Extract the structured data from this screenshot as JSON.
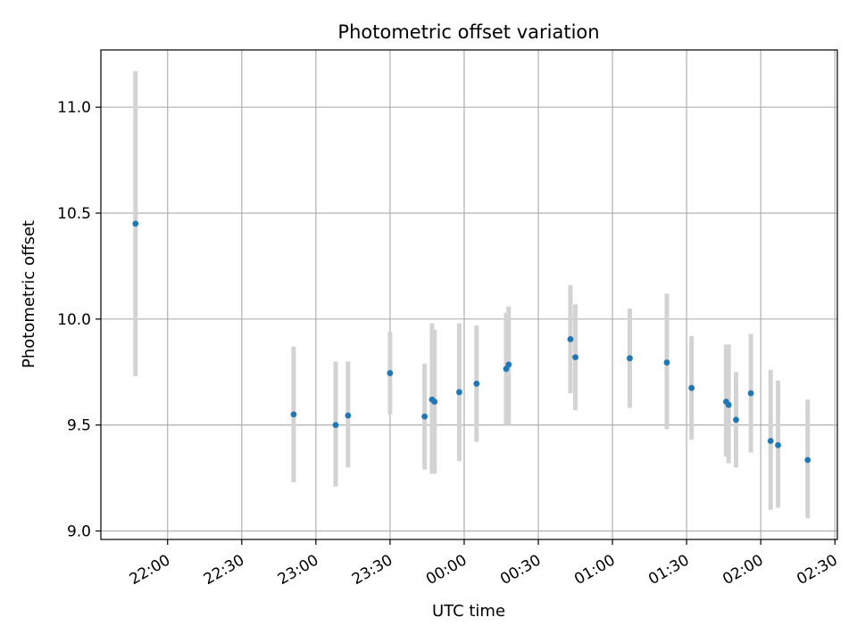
{
  "chart_data": {
    "type": "scatter",
    "title": "Photometric offset variation",
    "xlabel": "UTC time",
    "ylabel": "Photometric offset",
    "x_tick_labels": [
      "22:00",
      "22:30",
      "23:00",
      "23:30",
      "00:00",
      "00:30",
      "01:00",
      "01:30",
      "02:00",
      "02:30"
    ],
    "y_ticks": [
      9.0,
      9.5,
      10.0,
      10.5,
      11.0
    ],
    "y_tick_labels": [
      "9.0",
      "9.5",
      "10.0",
      "10.5",
      "11.0"
    ],
    "xlim": [
      "21:33",
      "02:31"
    ],
    "ylim": [
      8.96,
      11.27
    ],
    "grid": true,
    "colors": {
      "point": "#1f77b4",
      "error_bar": "#d3d3d3"
    },
    "points": [
      {
        "t": "21:47",
        "y": 10.45,
        "ylo": 9.73,
        "yhi": 11.17
      },
      {
        "t": "22:51",
        "y": 9.55,
        "ylo": 9.23,
        "yhi": 9.87
      },
      {
        "t": "23:08",
        "y": 9.5,
        "ylo": 9.21,
        "yhi": 9.8
      },
      {
        "t": "23:13",
        "y": 9.545,
        "ylo": 9.3,
        "yhi": 9.8
      },
      {
        "t": "23:30",
        "y": 9.745,
        "ylo": 9.55,
        "yhi": 9.94
      },
      {
        "t": "23:44",
        "y": 9.54,
        "ylo": 9.29,
        "yhi": 9.79
      },
      {
        "t": "23:47",
        "y": 9.62,
        "ylo": 9.27,
        "yhi": 9.98
      },
      {
        "t": "23:48",
        "y": 9.61,
        "ylo": 9.27,
        "yhi": 9.95
      },
      {
        "t": "23:58",
        "y": 9.655,
        "ylo": 9.33,
        "yhi": 9.98
      },
      {
        "t": "00:05",
        "y": 9.695,
        "ylo": 9.42,
        "yhi": 9.97
      },
      {
        "t": "00:17",
        "y": 9.765,
        "ylo": 9.5,
        "yhi": 10.03
      },
      {
        "t": "00:18",
        "y": 9.785,
        "ylo": 9.5,
        "yhi": 10.06
      },
      {
        "t": "00:43",
        "y": 9.905,
        "ylo": 9.65,
        "yhi": 10.16
      },
      {
        "t": "00:45",
        "y": 9.82,
        "ylo": 9.57,
        "yhi": 10.07
      },
      {
        "t": "01:07",
        "y": 9.815,
        "ylo": 9.58,
        "yhi": 10.05
      },
      {
        "t": "01:22",
        "y": 9.795,
        "ylo": 9.48,
        "yhi": 10.12
      },
      {
        "t": "01:32",
        "y": 9.675,
        "ylo": 9.43,
        "yhi": 9.92
      },
      {
        "t": "01:46",
        "y": 9.61,
        "ylo": 9.35,
        "yhi": 9.88
      },
      {
        "t": "01:47",
        "y": 9.595,
        "ylo": 9.32,
        "yhi": 9.88
      },
      {
        "t": "01:50",
        "y": 9.525,
        "ylo": 9.3,
        "yhi": 9.75
      },
      {
        "t": "01:56",
        "y": 9.65,
        "ylo": 9.37,
        "yhi": 9.93
      },
      {
        "t": "02:04",
        "y": 9.425,
        "ylo": 9.1,
        "yhi": 9.76
      },
      {
        "t": "02:07",
        "y": 9.405,
        "ylo": 9.11,
        "yhi": 9.71
      },
      {
        "t": "02:19",
        "y": 9.335,
        "ylo": 9.06,
        "yhi": 9.62
      }
    ]
  }
}
